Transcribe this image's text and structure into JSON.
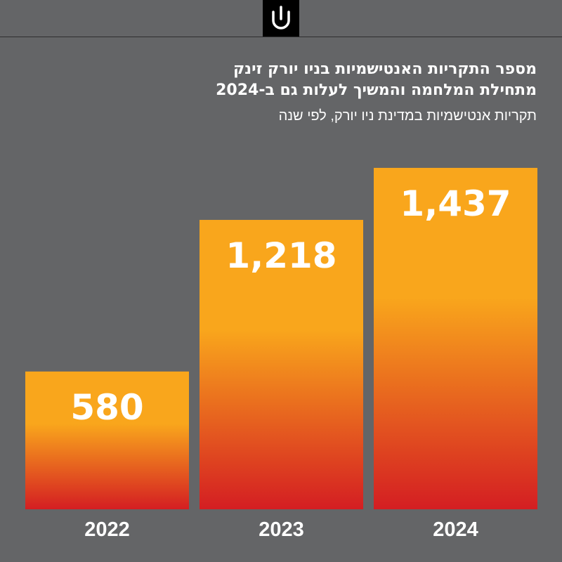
{
  "header": {
    "logo_icon": "logo-icon"
  },
  "chart_data": {
    "type": "bar",
    "title": "מספר התקריות האנטישמיות בניו יורק זינק מתחילת המלחמה והמשיך לעלות גם ב-2024",
    "title_lines": [
      "מספר התקריות האנטישמיות בניו יורק זינק",
      "מתחילת המלחמה והמשיך לעלות גם ב-2024"
    ],
    "subtitle": "תקריות אנטישמיות במדינת ניו יורק, לפי שנה",
    "categories": [
      "2022",
      "2023",
      "2024"
    ],
    "values": [
      580,
      1218,
      1437
    ],
    "value_labels": [
      "580",
      "1,218",
      "1,437"
    ],
    "ylim": [
      0,
      1700
    ],
    "grid": false,
    "colors": {
      "gradient_top": "#f9a61c",
      "gradient_bottom": "#d41e22",
      "background": "#646567"
    }
  }
}
